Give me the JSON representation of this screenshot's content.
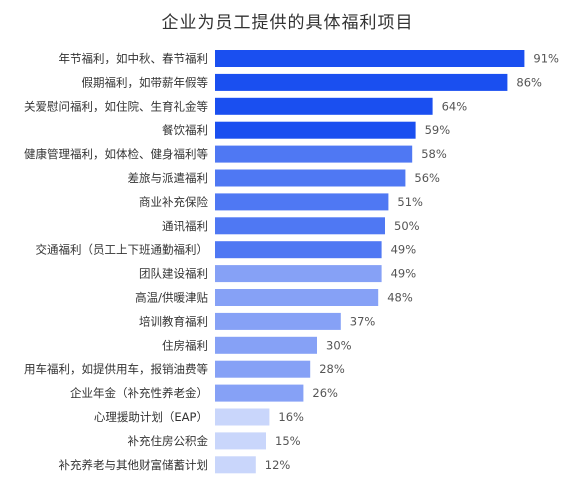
{
  "chart_data": {
    "type": "bar",
    "orientation": "horizontal",
    "title": "企业为员工提供的具体福利项目",
    "xlim": [
      0,
      100
    ],
    "grid": false,
    "categories": [
      "年节福利，如中秋、春节福利",
      "假期福利，如带薪年假等",
      "关爱慰问福利，如住院、生育礼金等",
      "餐饮福利",
      "健康管理福利，如体检、健身福利等",
      "差旅与派遣福利",
      "商业补充保险",
      "通讯福利",
      "交通福利（员工上下班通勤福利）",
      "团队建设福利",
      "高温/供暖津贴",
      "培训教育福利",
      "住房福利",
      "用车福利，如提供用车，报销油费等",
      "企业年金（补充性养老金）",
      "心理援助计划（EAP）",
      "补充住房公积金",
      "补充养老与其他财富储蓄计划"
    ],
    "values": [
      91,
      86,
      64,
      59,
      58,
      56,
      51,
      50,
      49,
      49,
      48,
      37,
      30,
      28,
      26,
      16,
      15,
      12
    ],
    "value_labels": [
      "91%",
      "86%",
      "64%",
      "59%",
      "58%",
      "56%",
      "51%",
      "50%",
      "49%",
      "49%",
      "48%",
      "37%",
      "30%",
      "28%",
      "26%",
      "16%",
      "15%",
      "12%"
    ],
    "bar_colors": [
      "#1a4ff0",
      "#1a4ff0",
      "#1a4ff0",
      "#1a4ff0",
      "#4f78f3",
      "#4f78f3",
      "#4f78f3",
      "#4f78f3",
      "#4f78f3",
      "#86a1f6",
      "#86a1f6",
      "#86a1f6",
      "#86a1f6",
      "#86a1f6",
      "#86a1f6",
      "#c9d6fb",
      "#c9d6fb",
      "#c9d6fb"
    ]
  }
}
